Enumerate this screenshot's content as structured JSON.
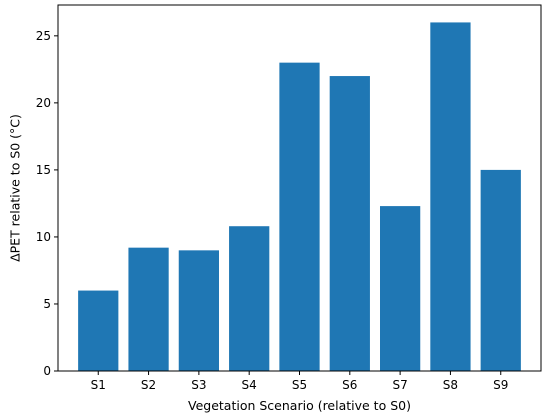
{
  "chart_data": {
    "type": "bar",
    "title": "",
    "xlabel": "Vegetation Scenario (relative to S0)",
    "ylabel": "ΔPET relative to S0 (°C)",
    "categories": [
      "S1",
      "S2",
      "S3",
      "S4",
      "S5",
      "S6",
      "S7",
      "S8",
      "S9"
    ],
    "values": [
      6.0,
      9.2,
      9.0,
      10.8,
      23.0,
      22.0,
      12.3,
      26.0,
      15.0
    ],
    "ylim": [
      0,
      27.3
    ],
    "yticks": [
      0,
      5,
      10,
      15,
      20,
      25
    ],
    "grid": false,
    "legend": "none",
    "bar_color": "#1f77b4"
  }
}
